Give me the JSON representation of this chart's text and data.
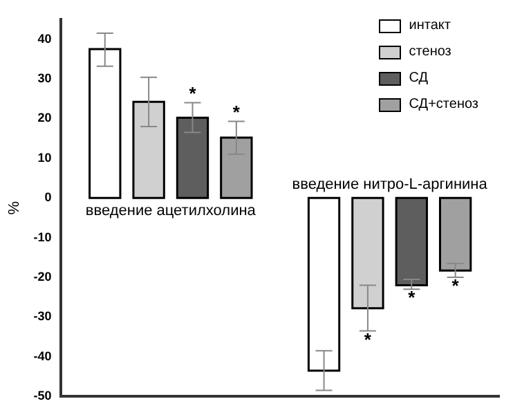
{
  "chart_data": {
    "type": "bar",
    "ylabel": "%",
    "categories": [
      "введение ацетилхолина",
      "введение нитро-L-аргинина"
    ],
    "series": [
      {
        "name": "интакт",
        "color": "#ffffff",
        "values": [
          37.5,
          -43.5
        ],
        "errors": [
          [
            33.2,
            41.5
          ],
          [
            -48.5,
            -38.5
          ]
        ]
      },
      {
        "name": "стеноз",
        "color": "#d0d0d0",
        "values": [
          24.2,
          -27.8
        ],
        "errors": [
          [
            18,
            30.4
          ],
          [
            -33.5,
            -22
          ]
        ]
      },
      {
        "name": "СД",
        "color": "#5e5e5e",
        "values": [
          20.2,
          -22
        ],
        "errors": [
          [
            16.5,
            24
          ],
          [
            -23,
            -20.5
          ]
        ]
      },
      {
        "name": "СД+стеноз",
        "color": "#a0a0a0",
        "values": [
          15.2,
          -18.3
        ],
        "errors": [
          [
            11,
            19.3
          ],
          [
            -20,
            -16.5
          ]
        ]
      }
    ],
    "ylim": [
      -50,
      45
    ],
    "yticks": [
      -50,
      -40,
      -30,
      -20,
      -10,
      0,
      10,
      20,
      30,
      40
    ],
    "grid": false,
    "legend": "top right",
    "annotations": [
      {
        "text": "*",
        "x": "введение ацетилхолина",
        "y": 20.2
      },
      "*",
      {
        "text": "*",
        "x": "введение нитро-L-аргинина",
        "y": -27.8
      },
      {
        "text": "*",
        "x": "введение нитро-L-аргинина",
        "y": -22
      },
      "*"
    ]
  }
}
